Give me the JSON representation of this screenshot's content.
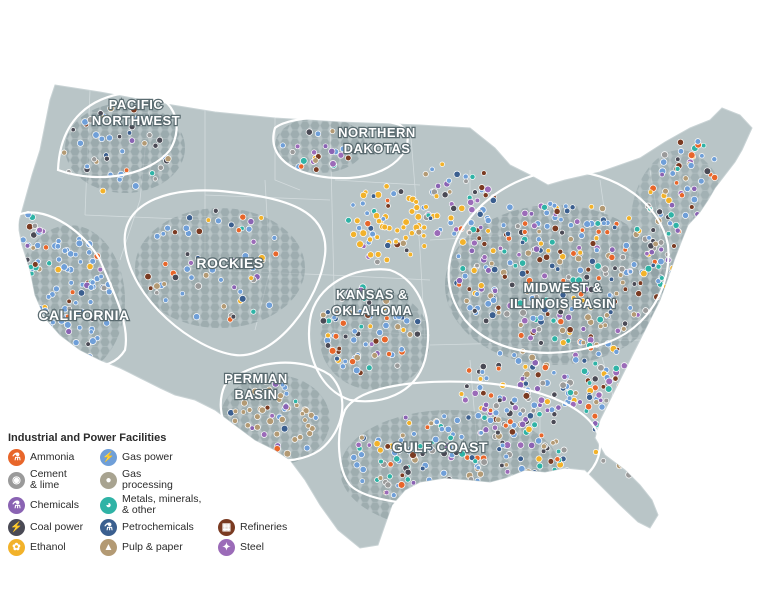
{
  "regions": [
    {
      "id": "pacific-northwest",
      "lines": [
        "PACIFIC",
        "NORTHWEST"
      ]
    },
    {
      "id": "northern-dakotas",
      "lines": [
        "NORTHERN",
        "DAKOTAS"
      ]
    },
    {
      "id": "rockies",
      "lines": [
        "ROCKIES"
      ]
    },
    {
      "id": "california",
      "lines": [
        "CALIFORNIA"
      ]
    },
    {
      "id": "kansas-oklahoma",
      "lines": [
        "KANSAS &",
        "OKLAHOMA"
      ]
    },
    {
      "id": "midwest-illinois",
      "lines": [
        "MIDWEST &",
        "ILLINOIS BASIN"
      ]
    },
    {
      "id": "permian",
      "lines": [
        "PERMIAN",
        "BASIN"
      ]
    },
    {
      "id": "gulf-coast",
      "lines": [
        "GULF COAST"
      ]
    }
  ],
  "legend": {
    "title": "Industrial and Power Facilities",
    "items": [
      {
        "key": "ammonia",
        "label": "Ammonia",
        "color": "#e8662a",
        "icon": "flask-icon"
      },
      {
        "key": "gas-power",
        "label": "Gas power",
        "color": "#6f9fd8",
        "icon": "flame-icon"
      },
      {
        "key": "refineries-blank",
        "label": "",
        "color": "",
        "icon": ""
      },
      {
        "key": "cement",
        "label": "Cement\n& lime",
        "color": "#9a9a9a",
        "icon": "cement-icon"
      },
      {
        "key": "gas-processing",
        "label": "Gas\nprocessing",
        "color": "#a8a390",
        "icon": "droplet-icon"
      },
      {
        "key": "blank2",
        "label": "",
        "color": "",
        "icon": ""
      },
      {
        "key": "chemicals",
        "label": "Chemicals",
        "color": "#8a63b3",
        "icon": "beaker-icon"
      },
      {
        "key": "metals",
        "label": "Metals, minerals,\n& other",
        "color": "#2fb3a6",
        "icon": "bowl-icon"
      },
      {
        "key": "blank3",
        "label": "",
        "color": "",
        "icon": ""
      },
      {
        "key": "coal-power",
        "label": "Coal power",
        "color": "#4a4a55",
        "icon": "bolt-icon"
      },
      {
        "key": "petrochemicals",
        "label": "Petrochemicals",
        "color": "#3b5f8f",
        "icon": "flask-icon"
      },
      {
        "key": "refineries",
        "label": "Refineries",
        "color": "#7a3b22",
        "icon": "factory-icon"
      },
      {
        "key": "ethanol",
        "label": "Ethanol",
        "color": "#f2b22a",
        "icon": "leaf-icon"
      },
      {
        "key": "pulp-paper",
        "label": "Pulp & paper",
        "color": "#b39a74",
        "icon": "tree-icon"
      },
      {
        "key": "steel",
        "label": "Steel",
        "color": "#9b6bb8",
        "icon": "steel-icon"
      }
    ]
  },
  "colors": {
    "land": "#b8c4c6",
    "hex_dark": "#8d9ea3",
    "boundary": "#ffffff"
  }
}
